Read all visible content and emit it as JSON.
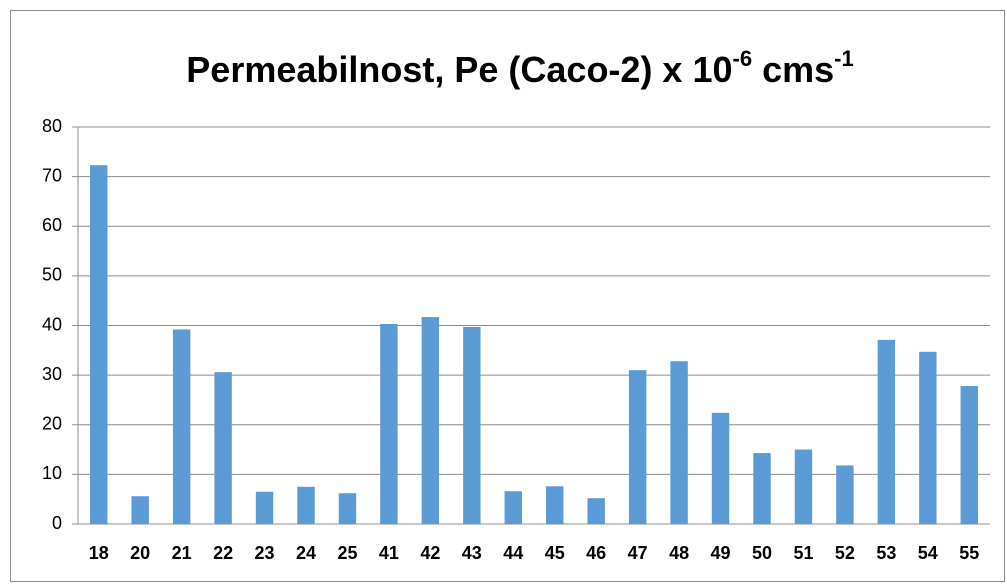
{
  "chart_data": {
    "type": "bar",
    "title": [
      "Permeabilnost, Pe (Caco-2)  x 10",
      "-6",
      " cms",
      "-1"
    ],
    "categories": [
      "18",
      "20",
      "21",
      "22",
      "23",
      "24",
      "25",
      "41",
      "42",
      "43",
      "44",
      "45",
      "46",
      "47",
      "48",
      "49",
      "50",
      "51",
      "52",
      "53",
      "54",
      "55"
    ],
    "values": [
      72.3,
      5.6,
      39.2,
      30.6,
      6.5,
      7.5,
      6.2,
      40.3,
      41.7,
      39.7,
      6.6,
      7.6,
      5.2,
      31,
      32.8,
      22.4,
      14.3,
      15,
      11.8,
      37.1,
      34.7,
      27.8
    ],
    "color": "#5b9bd5",
    "ylim": [
      0,
      80
    ],
    "yticks": [
      0,
      10,
      20,
      30,
      40,
      50,
      60,
      70,
      80
    ],
    "grid": true
  }
}
